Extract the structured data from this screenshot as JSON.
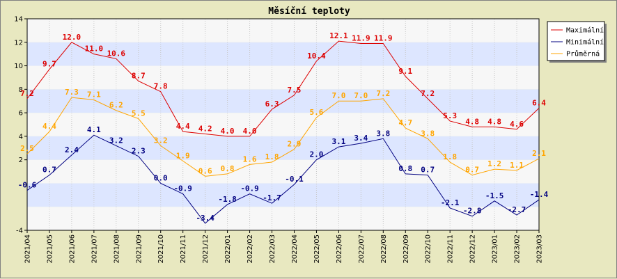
{
  "chart_data": {
    "type": "line",
    "title": "Měsíční teploty",
    "xlabel": "",
    "ylabel": "",
    "ylim": [
      -4,
      14
    ],
    "yticks": [
      -4,
      2,
      4,
      6,
      8,
      10,
      12,
      14
    ],
    "grid": "horizontal bands",
    "legend_position": "top-right",
    "categories": [
      "2021/04",
      "2021/05",
      "2021/06",
      "2021/07",
      "2021/08",
      "2021/09",
      "2021/10",
      "2021/11",
      "2021/12",
      "2022/01",
      "2022/02",
      "2022/03",
      "2022/04",
      "2022/05",
      "2022/06",
      "2022/07",
      "2022/08",
      "2022/09",
      "2022/10",
      "2022/11",
      "2022/12",
      "2023/01",
      "2023/02",
      "2023/03"
    ],
    "series": [
      {
        "name": "Maximální",
        "color": "#dd0000",
        "values": [
          7.2,
          9.7,
          12.0,
          11.0,
          10.6,
          8.7,
          7.8,
          4.4,
          4.2,
          4.0,
          4.0,
          6.3,
          7.5,
          10.4,
          12.1,
          11.9,
          11.9,
          9.1,
          7.2,
          5.3,
          4.8,
          4.8,
          4.6,
          6.4
        ]
      },
      {
        "name": "Minimální",
        "color": "#000080",
        "values": [
          -0.6,
          0.7,
          2.4,
          4.1,
          3.2,
          2.3,
          0.0,
          -0.9,
          -3.4,
          -1.8,
          -0.9,
          -1.7,
          -0.1,
          2.0,
          3.1,
          3.4,
          3.8,
          0.8,
          0.7,
          -2.1,
          -2.8,
          -1.5,
          -2.7,
          -1.4
        ]
      },
      {
        "name": "Průměrná",
        "color": "#ffa500",
        "values": [
          2.5,
          4.4,
          7.3,
          7.1,
          6.2,
          5.5,
          3.2,
          1.9,
          0.6,
          0.8,
          1.6,
          1.8,
          2.9,
          5.6,
          7.0,
          7.0,
          7.2,
          4.7,
          3.8,
          1.8,
          0.7,
          1.2,
          1.1,
          2.1
        ]
      }
    ]
  }
}
